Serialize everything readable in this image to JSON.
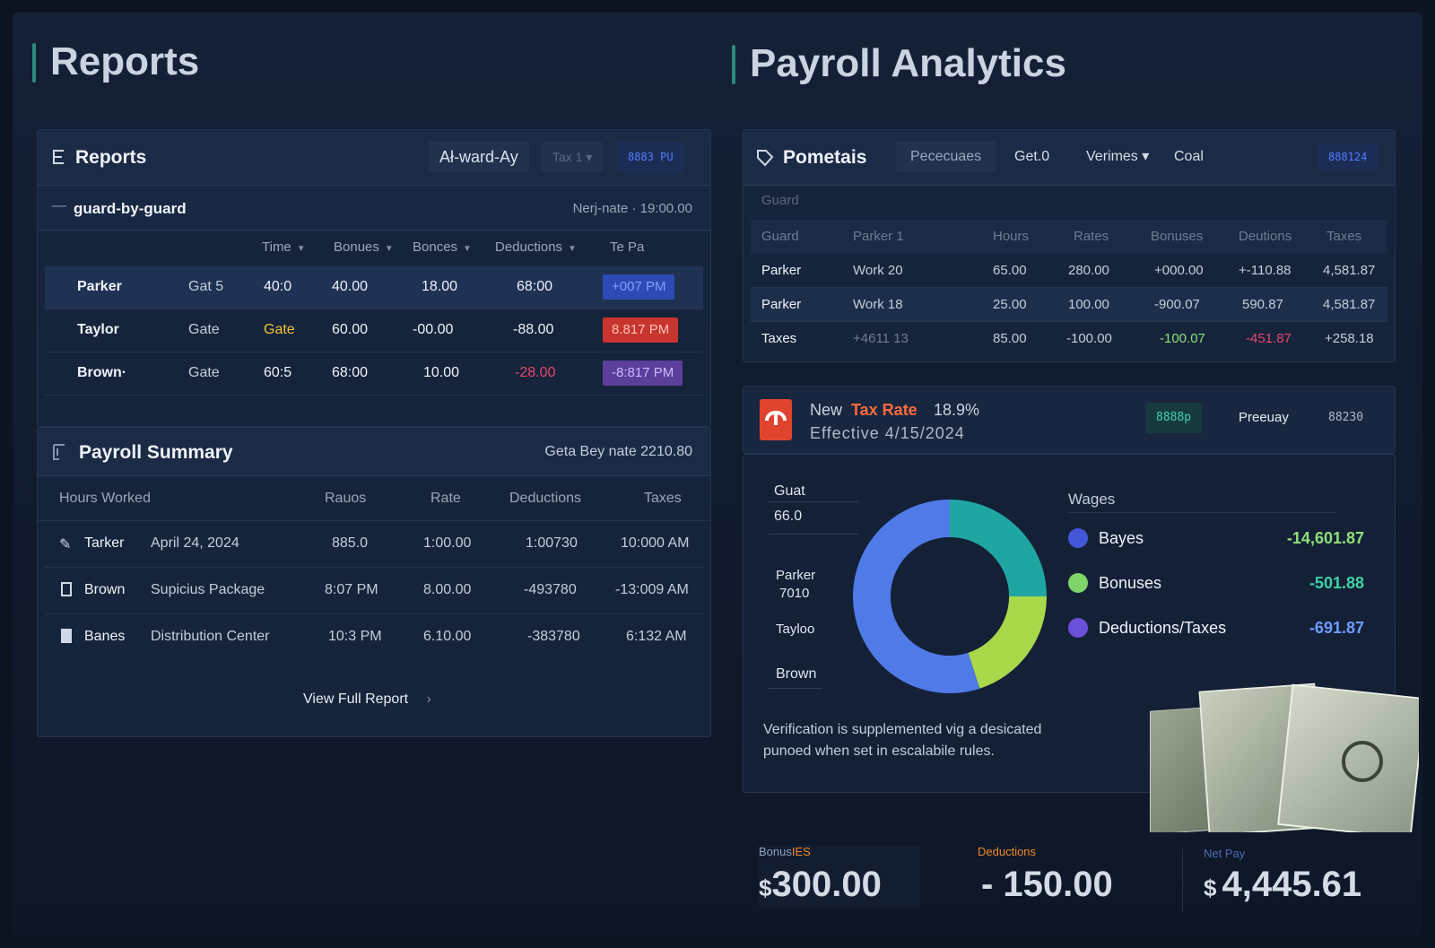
{
  "page": {
    "left_title": "Reports",
    "right_title": "Payroll Analytics"
  },
  "reports_panel": {
    "title": "Reports",
    "chips": [
      "Ał-ward-Ay",
      "Tax 1 ▾",
      "8883 PU"
    ],
    "subheader": "guard-by-guard",
    "subheader_right": "Nerj-nate · 19:00.00",
    "columns": [
      "Time",
      "Bonues",
      "Bonces",
      "Deductions",
      "Te Pa"
    ],
    "rows": [
      {
        "name": "Parker",
        "gate": "Gat 5",
        "time": "40:0",
        "b1": "40.00",
        "b2": "18.00",
        "ded": "68:00",
        "pay": "+007 PM"
      },
      {
        "name": "Taylor",
        "gate": "Gate",
        "time": "Gate",
        "b1": "60.00",
        "b2": "-00.00",
        "ded": "-88.00",
        "pay": "8.817 PM"
      },
      {
        "name": "Brown·",
        "gate": "Gate",
        "time": "60:5",
        "b1": "68:00",
        "b2": "10.00",
        "ded": "-28.00",
        "pay": "-8:817 PM"
      }
    ]
  },
  "payroll_summary": {
    "title": "Payroll Summary",
    "right": "Geta Bey nate 2210.80",
    "columns": [
      "Hours Worked",
      "Rauos",
      "Rate",
      "Deductions",
      "Taxes"
    ],
    "rows": [
      {
        "name": "Tarker",
        "desc": "April 24, 2024",
        "rauos": "885.0",
        "rate": "1:00.00",
        "ded": "1:00730",
        "tax": "10:000 AM"
      },
      {
        "name": "Brown",
        "desc": "Supicius Package",
        "rauos": "8:07 PM",
        "rate": "8.00.00",
        "ded": "-493780",
        "tax": "-13:009 AM"
      },
      {
        "name": "Banes",
        "desc": "Distribution Center",
        "rauos": "10:3 PM",
        "rate": "6.10.00",
        "ded": "-383780",
        "tax": "6:132 AM"
      }
    ],
    "view_full": "View Full Report"
  },
  "pometais_panel": {
    "title": "Pometais",
    "tabs": [
      "Pececuaes",
      "Get.0",
      "Verimes ▾",
      "Coal"
    ],
    "chip": "888124",
    "section_label": "Guard",
    "columns": [
      "Guard",
      "Parker 1",
      "Hours",
      "Rates",
      "Bonuses",
      "Deutions",
      "Taxes"
    ],
    "rows": [
      {
        "guard": "Parker",
        "p1": "Work 20",
        "hours": "65.00",
        "rates": "280.00",
        "bonuses": "+000.00",
        "deut": "+-110.88",
        "taxes": "4,581.87"
      },
      {
        "guard": "Parker",
        "p1": "Work 18",
        "hours": "25.00",
        "rates": "100.00",
        "bonuses": "-900.07",
        "deut": "590.87",
        "taxes": "4,581.87"
      },
      {
        "guard": "Taxes",
        "p1": "+4611 13",
        "hours": "85.00",
        "rates": "-100.00",
        "bonuses": "-100.07",
        "deut": "-451.87",
        "taxes": "+258.18"
      }
    ]
  },
  "tax_banner": {
    "new": "New",
    "tax_rate": "Tax Rate",
    "pct": "18.9%",
    "effective": "Effective 4/15/2024",
    "chip1": "8888p",
    "chip2": "Preeuay",
    "chip3": "88230"
  },
  "donut": {
    "left_labels": [
      "Guat",
      "66.0",
      "Parker",
      "7010",
      "Tayloo",
      "Brown"
    ],
    "legend_title": "Wages",
    "legend": [
      {
        "name": "Bayes",
        "value": "-14,601.87",
        "color": "#4357d8"
      },
      {
        "name": "Bonuses",
        "value": "-501.88",
        "color": "#7fd46a"
      },
      {
        "name": "Deductions/Taxes",
        "value": "-691.87",
        "color": "#6a4fd8"
      }
    ],
    "segments": [
      {
        "value": 25,
        "color": "#1fa6a3"
      },
      {
        "value": 20,
        "color": "#a9d84a"
      },
      {
        "value": 55,
        "color": "#4f7ae8"
      }
    ],
    "note_line1": "Verification is supplemented vig a desicated",
    "note_line2": "punoed when set in escalabile rules."
  },
  "kpis": [
    {
      "label_pre": "Bonus",
      "label_hi": "IES",
      "prefix": "$",
      "value": "300.00",
      "label_color": "#8fa1c2",
      "hi_color": "#f08a2c"
    },
    {
      "label_pre": "",
      "label_hi": "Deductions",
      "prefix": "",
      "value": "- 150.00",
      "label_color": "#f08a2c",
      "hi_color": "#f08a2c"
    },
    {
      "label_pre": "Net Pay",
      "label_hi": "",
      "prefix": "$",
      "value": "4,445.61",
      "label_color": "#4f6bb8",
      "hi_color": "#4f6bb8"
    }
  ]
}
